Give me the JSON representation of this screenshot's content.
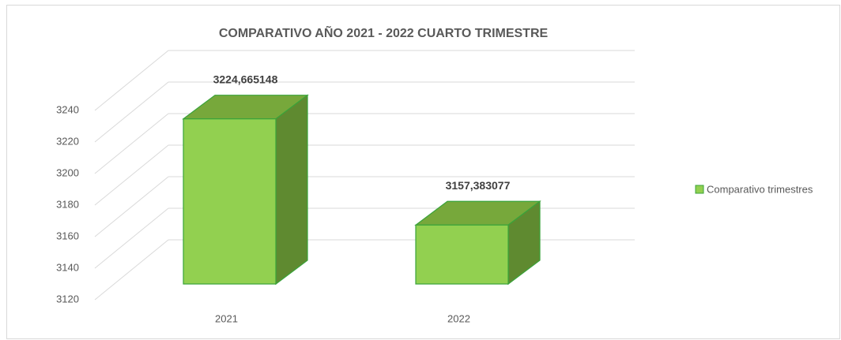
{
  "chart_data": {
    "type": "bar3d",
    "title": "COMPARATIVO AÑO  2021 - 2022  CUARTO TRIMESTRE",
    "categories": [
      "2021",
      "2022"
    ],
    "series": [
      {
        "name": "Comparativo trimestres",
        "color": "#92d050",
        "values": [
          3224.665148,
          3157.383077
        ],
        "value_labels": [
          "3224,665148",
          "3157,383077"
        ]
      }
    ],
    "ylim": [
      3120,
      3240
    ],
    "yticks": [
      3120,
      3140,
      3160,
      3180,
      3200,
      3220,
      3240
    ],
    "grid": true,
    "legend": "right"
  }
}
